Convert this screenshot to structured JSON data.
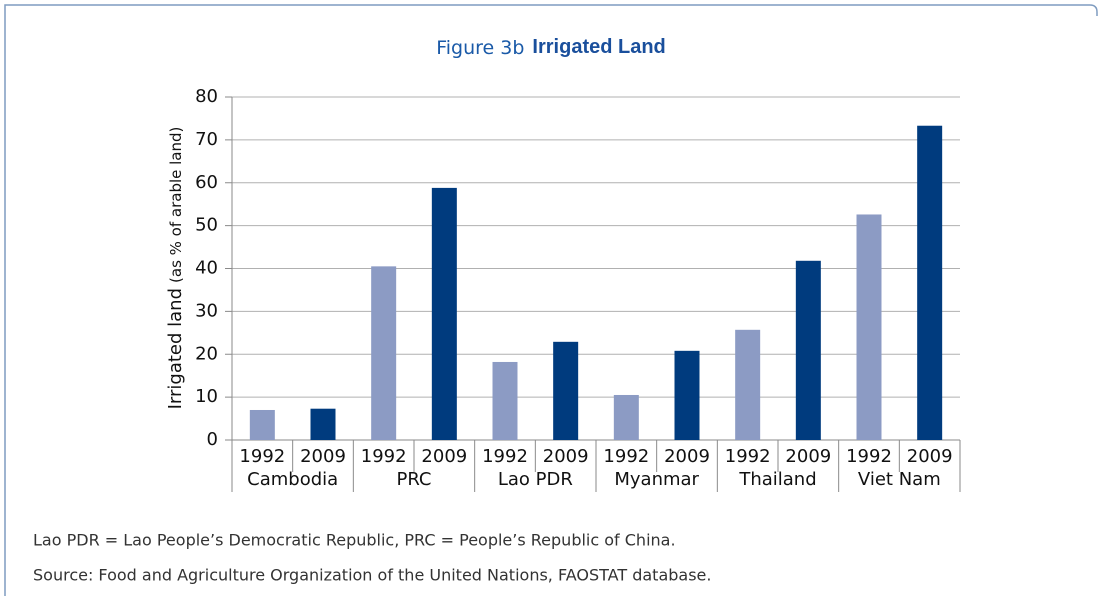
{
  "chart_data": {
    "type": "grouped_bar",
    "figure_label": "Figure 3b",
    "title": "Irrigated Land",
    "ylabel": "Irrigated land",
    "ylabel_unit": "(as % of arable land)",
    "categories": [
      "Cambodia",
      "PRC",
      "Lao PDR",
      "Myanmar",
      "Thailand",
      "Viet Nam"
    ],
    "series": [
      {
        "name": "1992",
        "color": "#8c9bc4",
        "values": [
          7.0,
          40.5,
          18.2,
          10.5,
          25.7,
          52.6
        ]
      },
      {
        "name": "2009",
        "color": "#003b7e",
        "values": [
          7.3,
          58.8,
          22.9,
          20.8,
          41.8,
          73.3
        ]
      }
    ],
    "ylim": [
      0,
      80
    ],
    "yticks": [
      0,
      10,
      20,
      30,
      40,
      50,
      60,
      70,
      80
    ],
    "grid": true
  },
  "notes": [
    "Lao PDR = Lao People’s Democratic Republic, PRC = People’s Republic of China.",
    "Source: Food and Agriculture Organization of the United Nations, FAOSTAT database."
  ]
}
